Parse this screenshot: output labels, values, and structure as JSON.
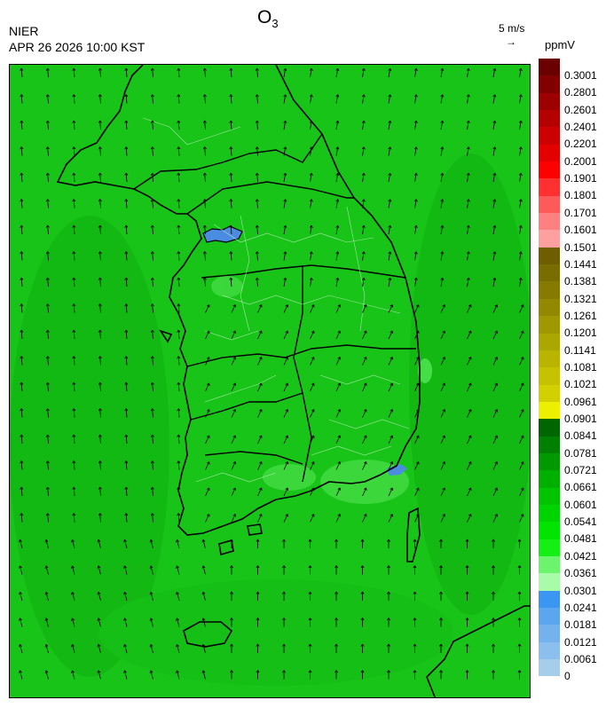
{
  "header": {
    "source": "NIER",
    "timestamp": "APR 26 2026 10:00 KST",
    "title_main": "O",
    "title_sub": "3",
    "wind_scale_label": "5 m/s",
    "wind_arrow_glyph": "→",
    "unit": "ppmV"
  },
  "map": {
    "background_color": "#18c418",
    "coast_color": "#000000",
    "boundary_color": "#000000",
    "hotspots": [
      {
        "region": "Seoul",
        "color": "#4a8de0"
      },
      {
        "region": "Busan",
        "color": "#4a8de0"
      }
    ],
    "wind_direction": "predominantly southerly/southwesterly"
  },
  "colorbar": {
    "labels": [
      "0.3001",
      "0.2801",
      "0.2601",
      "0.2401",
      "0.2201",
      "0.2001",
      "0.1901",
      "0.1801",
      "0.1701",
      "0.1601",
      "0.1501",
      "0.1441",
      "0.1381",
      "0.1321",
      "0.1261",
      "0.1201",
      "0.1141",
      "0.1081",
      "0.1021",
      "0.0961",
      "0.0901",
      "0.0841",
      "0.0781",
      "0.0721",
      "0.0661",
      "0.0601",
      "0.0541",
      "0.0481",
      "0.0421",
      "0.0361",
      "0.0301",
      "0.0241",
      "0.0181",
      "0.0121",
      "0.0061",
      "0"
    ],
    "colors": [
      "#6b0000",
      "#830000",
      "#9c0000",
      "#b40000",
      "#cc0000",
      "#e50000",
      "#ff0000",
      "#ff3030",
      "#ff5a5a",
      "#ff8080",
      "#ffa0a0",
      "#6e5e00",
      "#7a6d00",
      "#867b00",
      "#938900",
      "#a09800",
      "#aca600",
      "#b9b400",
      "#c5c200",
      "#d2d000",
      "#eeee00",
      "#006600",
      "#007f00",
      "#009900",
      "#00b000",
      "#00c400",
      "#00d400",
      "#00e400",
      "#14f014",
      "#6cf56c",
      "#a8fba8",
      "#3a96f0",
      "#5aa6ef",
      "#74b2ee",
      "#8cbfee",
      "#a6cde9"
    ]
  }
}
